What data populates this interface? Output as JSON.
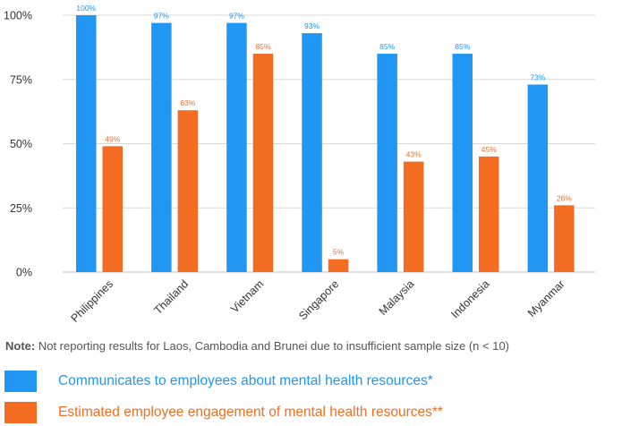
{
  "colors": {
    "series1": "#2196f3",
    "series2": "#f26d21",
    "grid": "#d9d9d9",
    "axis": "#333333"
  },
  "chart_data": {
    "type": "bar",
    "categories": [
      "Philippines",
      "Thailand",
      "Vietnam",
      "Singapore",
      "Malaysia",
      "Indonesia",
      "Myanmar"
    ],
    "series": [
      {
        "name": "Communicates to employees about mental health resources*",
        "values": [
          100,
          97,
          97,
          93,
          85,
          85,
          73
        ],
        "labels": [
          "100%",
          "97%",
          "97%",
          "93%",
          "85%",
          "85%",
          "73%"
        ]
      },
      {
        "name": "Estimated employee engagement of mental health resources**",
        "values": [
          49,
          63,
          85,
          5,
          43,
          45,
          26
        ],
        "labels": [
          "49%",
          "63%",
          "85%",
          "5%",
          "43%",
          "45%",
          "26%"
        ]
      }
    ],
    "ylim": [
      0,
      100
    ],
    "yticks": [
      0,
      25,
      50,
      75,
      100
    ],
    "ytick_labels": [
      "0%",
      "25%",
      "50%",
      "75%",
      "100%"
    ],
    "grid": true,
    "legend_position": "bottom"
  },
  "note": {
    "label": "Note:",
    "text": " Not reporting results for Laos, Cambodia and Brunei due to insufficient sample size (n < 10)"
  }
}
